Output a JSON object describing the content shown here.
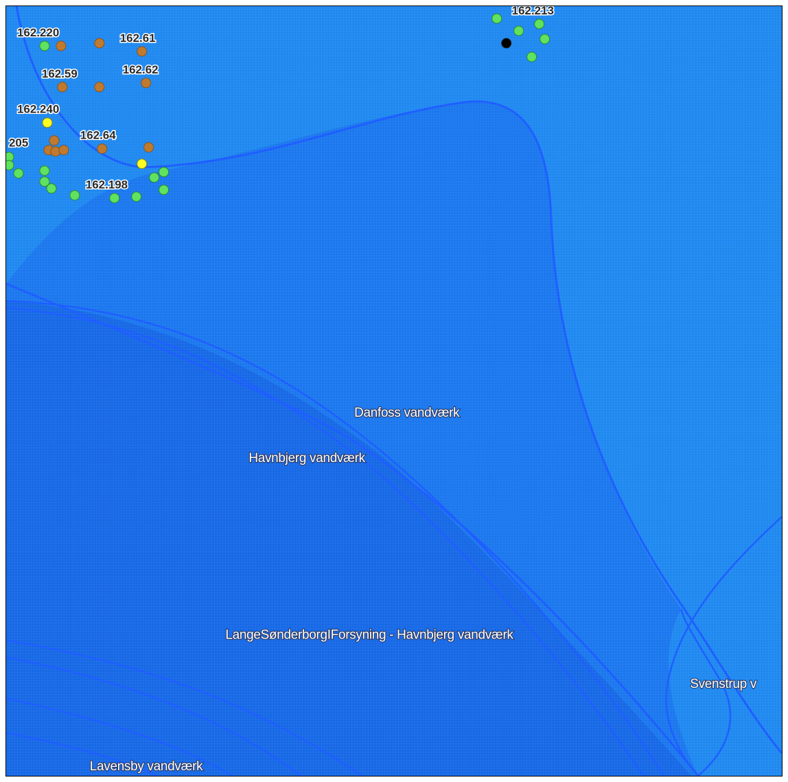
{
  "map": {
    "area_labels": {
      "danfoss": "Danfoss vandværk",
      "havnbjerg": "Havnbjerg vandværk",
      "lange": "LangeSønderborgIForsyning - Havnbjerg vandværk",
      "svenstrup": "Svenstrup v",
      "lavensby": "Lavensby vandværk"
    },
    "well_labels": {
      "w213": "162.213",
      "w220": "162.220",
      "w61": "162.61",
      "w59": "162.59",
      "w62": "162.62",
      "w240": "162.240",
      "w205": "205",
      "w64": "162.64",
      "w198": "162.198"
    },
    "colors": {
      "outer_zone": "#1e88f0",
      "danfoss_zone": "#1a77ee",
      "havnbjerg_zone": "#1668e6",
      "boundary": "#1a5bff",
      "well_green": "#5fe25f",
      "well_orange": "#c07a30",
      "well_yellow": "#ffff22",
      "well_black": "#000000"
    }
  }
}
